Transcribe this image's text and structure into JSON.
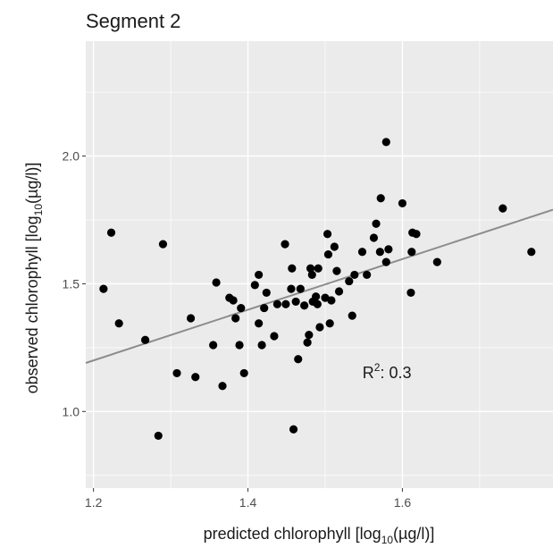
{
  "chart_data": {
    "type": "scatter",
    "title": "Segment 2",
    "xlabel": {
      "prefix": "predicted chlorophyll [log",
      "sub": "10",
      "suffix": "(µg/l)]"
    },
    "ylabel": {
      "prefix": "observed chlorophyll [log",
      "sub": "10",
      "suffix": "(µg/l)]"
    },
    "xlim": [
      1.19,
      1.795
    ],
    "ylim": [
      0.7,
      2.45
    ],
    "x_ticks": [
      1.2,
      1.4,
      1.6
    ],
    "x_tick_labels": [
      "1.2",
      "1.4",
      "1.6"
    ],
    "y_ticks": [
      1.0,
      1.5,
      2.0
    ],
    "y_tick_labels": [
      "1.0",
      "1.5",
      "2.0"
    ],
    "grid": true,
    "background_color": "#ebebeb",
    "point_color": "#000000",
    "line_color": "#8c8c8c",
    "annotation": {
      "base": "R",
      "sup": "2",
      "rest": ": 0.3",
      "x": 1.58,
      "y": 1.13
    },
    "trend_line": {
      "x": [
        1.19,
        1.795
      ],
      "y": [
        1.19,
        1.79
      ]
    },
    "points": [
      {
        "x": 1.213,
        "y": 1.48
      },
      {
        "x": 1.223,
        "y": 1.7
      },
      {
        "x": 1.233,
        "y": 1.345
      },
      {
        "x": 1.267,
        "y": 1.28
      },
      {
        "x": 1.284,
        "y": 0.905
      },
      {
        "x": 1.29,
        "y": 1.655
      },
      {
        "x": 1.308,
        "y": 1.15
      },
      {
        "x": 1.326,
        "y": 1.365
      },
      {
        "x": 1.332,
        "y": 1.135
      },
      {
        "x": 1.355,
        "y": 1.26
      },
      {
        "x": 1.359,
        "y": 1.505
      },
      {
        "x": 1.367,
        "y": 1.1
      },
      {
        "x": 1.376,
        "y": 1.445
      },
      {
        "x": 1.381,
        "y": 1.435
      },
      {
        "x": 1.384,
        "y": 1.365
      },
      {
        "x": 1.389,
        "y": 1.26
      },
      {
        "x": 1.391,
        "y": 1.405
      },
      {
        "x": 1.395,
        "y": 1.15
      },
      {
        "x": 1.409,
        "y": 1.495
      },
      {
        "x": 1.414,
        "y": 1.535
      },
      {
        "x": 1.414,
        "y": 1.345
      },
      {
        "x": 1.418,
        "y": 1.26
      },
      {
        "x": 1.421,
        "y": 1.405
      },
      {
        "x": 1.424,
        "y": 1.465
      },
      {
        "x": 1.434,
        "y": 1.295
      },
      {
        "x": 1.438,
        "y": 1.42
      },
      {
        "x": 1.448,
        "y": 1.655
      },
      {
        "x": 1.449,
        "y": 1.42
      },
      {
        "x": 1.456,
        "y": 1.48
      },
      {
        "x": 1.457,
        "y": 1.56
      },
      {
        "x": 1.459,
        "y": 0.93
      },
      {
        "x": 1.462,
        "y": 1.43
      },
      {
        "x": 1.465,
        "y": 1.205
      },
      {
        "x": 1.468,
        "y": 1.48
      },
      {
        "x": 1.473,
        "y": 1.415
      },
      {
        "x": 1.477,
        "y": 1.27
      },
      {
        "x": 1.479,
        "y": 1.3
      },
      {
        "x": 1.481,
        "y": 1.56
      },
      {
        "x": 1.483,
        "y": 1.535
      },
      {
        "x": 1.484,
        "y": 1.43
      },
      {
        "x": 1.488,
        "y": 1.45
      },
      {
        "x": 1.49,
        "y": 1.42
      },
      {
        "x": 1.491,
        "y": 1.56
      },
      {
        "x": 1.493,
        "y": 1.33
      },
      {
        "x": 1.5,
        "y": 1.445
      },
      {
        "x": 1.503,
        "y": 1.695
      },
      {
        "x": 1.504,
        "y": 1.615
      },
      {
        "x": 1.506,
        "y": 1.345
      },
      {
        "x": 1.508,
        "y": 1.435
      },
      {
        "x": 1.512,
        "y": 1.645
      },
      {
        "x": 1.515,
        "y": 1.55
      },
      {
        "x": 1.518,
        "y": 1.47
      },
      {
        "x": 1.531,
        "y": 1.51
      },
      {
        "x": 1.535,
        "y": 1.375
      },
      {
        "x": 1.538,
        "y": 1.535
      },
      {
        "x": 1.548,
        "y": 1.625
      },
      {
        "x": 1.554,
        "y": 1.535
      },
      {
        "x": 1.563,
        "y": 1.68
      },
      {
        "x": 1.566,
        "y": 1.735
      },
      {
        "x": 1.571,
        "y": 1.625
      },
      {
        "x": 1.572,
        "y": 1.835
      },
      {
        "x": 1.579,
        "y": 2.055
      },
      {
        "x": 1.579,
        "y": 1.585
      },
      {
        "x": 1.582,
        "y": 1.635
      },
      {
        "x": 1.6,
        "y": 1.815
      },
      {
        "x": 1.611,
        "y": 1.465
      },
      {
        "x": 1.612,
        "y": 1.625
      },
      {
        "x": 1.613,
        "y": 1.7
      },
      {
        "x": 1.618,
        "y": 1.695
      },
      {
        "x": 1.645,
        "y": 1.585
      },
      {
        "x": 1.73,
        "y": 1.795
      },
      {
        "x": 1.767,
        "y": 1.625
      }
    ]
  }
}
